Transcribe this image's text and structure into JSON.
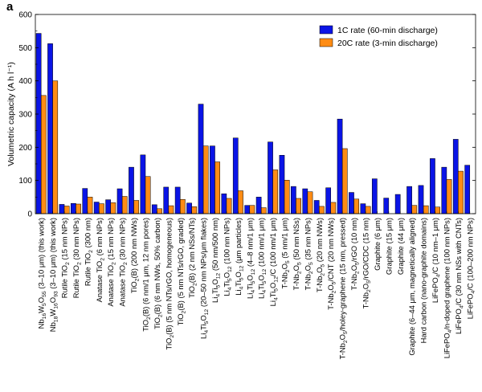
{
  "panel_label": "a",
  "chart_data": {
    "type": "bar",
    "ylabel": "Volumetric capacity (A h l⁻¹)",
    "xlabel": "",
    "ylim": [
      0,
      600
    ],
    "yticks": [
      0,
      100,
      200,
      300,
      400,
      500,
      600
    ],
    "grid": false,
    "legend_position": "top-right",
    "series": [
      {
        "name": "1C rate (60-min discharge)",
        "color": "#0a14e6",
        "values": [
          543,
          512,
          28,
          31,
          76,
          35,
          42,
          75,
          140,
          177,
          27,
          80,
          80,
          32,
          330,
          204,
          60,
          228,
          25,
          50,
          216,
          176,
          82,
          75,
          40,
          78,
          285,
          64,
          30,
          105,
          47,
          58,
          82,
          85,
          166,
          140,
          224,
          146
        ]
      },
      {
        "name": "20C rate (3-min discharge)",
        "color": "#ff8c14",
        "values": [
          356,
          400,
          23,
          29,
          50,
          30,
          33,
          52,
          40,
          112,
          15,
          24,
          43,
          21,
          204,
          156,
          46,
          69,
          25,
          18,
          132,
          101,
          46,
          66,
          22,
          34,
          196,
          44,
          22,
          0,
          0,
          0,
          25,
          24,
          20,
          103,
          128,
          0
        ]
      }
    ],
    "categories": [
      {
        "main": "Nb",
        "parts": [
          [
            "16",
            -1
          ],
          [
            "W",
            0
          ],
          [
            "5",
            -1
          ],
          [
            "O",
            0
          ],
          [
            "55",
            -1
          ],
          [
            " (3–10 μm) (this work)",
            0
          ]
        ]
      },
      {
        "main": "Nb",
        "parts": [
          [
            "18",
            -1
          ],
          [
            "W",
            0
          ],
          [
            "16",
            -1
          ],
          [
            "O",
            0
          ],
          [
            "93",
            -1
          ],
          [
            " (3–10 μm) (this work)",
            0
          ]
        ]
      },
      {
        "main": "Rutile TiO",
        "parts": [
          [
            "2",
            -1
          ],
          [
            " (15 nm NPs)",
            0
          ]
        ]
      },
      {
        "main": "Rutile TiO",
        "parts": [
          [
            "2",
            -1
          ],
          [
            " (30 nm NPs)",
            0
          ]
        ]
      },
      {
        "main": "Rutile TiO",
        "parts": [
          [
            "2",
            -1
          ],
          [
            " (300 nm)",
            0
          ]
        ]
      },
      {
        "main": "Anatase TiO",
        "parts": [
          [
            "2",
            -1
          ],
          [
            " (6 nm NPs)",
            0
          ]
        ]
      },
      {
        "main": "Anatase TiO",
        "parts": [
          [
            "2",
            -1
          ],
          [
            " (15 nm NPs)",
            0
          ]
        ]
      },
      {
        "main": "Anatase TiO",
        "parts": [
          [
            "2",
            -1
          ],
          [
            " (30 nm NPs)",
            0
          ]
        ]
      },
      {
        "main": "TiO",
        "parts": [
          [
            "2",
            -1
          ],
          [
            "(B) (200 nm NWs)",
            0
          ]
        ]
      },
      {
        "main": "TiO",
        "parts": [
          [
            "2",
            -1
          ],
          [
            "(B) (6 nm/1 μm, 12 nm pores)",
            0
          ]
        ]
      },
      {
        "main": "TiO",
        "parts": [
          [
            "2",
            -1
          ],
          [
            "(B) (6 nm NWs, 50% carbon)",
            0
          ]
        ]
      },
      {
        "main": "TiO",
        "parts": [
          [
            "2",
            -1
          ],
          [
            "(B) (5 nm NTs/rGO, homogeneous)",
            0
          ]
        ]
      },
      {
        "main": "TiO",
        "parts": [
          [
            "2",
            -1
          ],
          [
            "(B) (5 nm NTs/rGO, graded)",
            0
          ]
        ]
      },
      {
        "main": "TiO",
        "parts": [
          [
            "2",
            -1
          ],
          [
            "(B) (2 nm NSs/NTs)",
            0
          ]
        ]
      },
      {
        "main": "Li",
        "parts": [
          [
            "4",
            -1
          ],
          [
            "Ti",
            0
          ],
          [
            "5",
            -1
          ],
          [
            "O",
            0
          ],
          [
            "12",
            -1
          ],
          [
            " (20–50 nm NPs/μm flakes)",
            0
          ]
        ]
      },
      {
        "main": "Li",
        "parts": [
          [
            "4",
            -1
          ],
          [
            "Ti",
            0
          ],
          [
            "5",
            -1
          ],
          [
            "O",
            0
          ],
          [
            "12",
            -1
          ],
          [
            " (50 nm/500 nm)",
            0
          ]
        ]
      },
      {
        "main": "Li",
        "parts": [
          [
            "4",
            -1
          ],
          [
            "Ti",
            0
          ],
          [
            "5",
            -1
          ],
          [
            "O",
            0
          ],
          [
            "12",
            -1
          ],
          [
            " (100 nm NPs)",
            0
          ]
        ]
      },
      {
        "main": "Li",
        "parts": [
          [
            "4",
            -1
          ],
          [
            "Ti",
            0
          ],
          [
            "5",
            -1
          ],
          [
            "O",
            0
          ],
          [
            "12",
            -1
          ],
          [
            " (μm particles)",
            0
          ]
        ]
      },
      {
        "main": "Li",
        "parts": [
          [
            "4",
            -1
          ],
          [
            "Ti",
            0
          ],
          [
            "5",
            -1
          ],
          [
            "O",
            0
          ],
          [
            "12",
            -1
          ],
          [
            " (4–8 nm/1 μm)",
            0
          ]
        ]
      },
      {
        "main": "Li",
        "parts": [
          [
            "4",
            -1
          ],
          [
            "Ti",
            0
          ],
          [
            "5",
            -1
          ],
          [
            "O",
            0
          ],
          [
            "12",
            -1
          ],
          [
            " (100 nm/1 μm)",
            0
          ]
        ]
      },
      {
        "main": "Li",
        "parts": [
          [
            "4",
            -1
          ],
          [
            "Ti",
            0
          ],
          [
            "5",
            -1
          ],
          [
            "O",
            0
          ],
          [
            "12",
            -1
          ],
          [
            "/C (100 nm/1 μm)",
            0
          ]
        ]
      },
      {
        "main": "T-Nb",
        "parts": [
          [
            "2",
            -1
          ],
          [
            "O",
            0
          ],
          [
            "5",
            -1
          ],
          [
            " (5 nm/1 μm)",
            0
          ]
        ]
      },
      {
        "main": "T-Nb",
        "parts": [
          [
            "2",
            -1
          ],
          [
            "O",
            0
          ],
          [
            "5",
            -1
          ],
          [
            " (50 nm NSs)",
            0
          ]
        ]
      },
      {
        "main": "T-Nb",
        "parts": [
          [
            "2",
            -1
          ],
          [
            "O",
            0
          ],
          [
            "5",
            -1
          ],
          [
            " (35 nm NPs)",
            0
          ]
        ]
      },
      {
        "main": "T-Nb",
        "parts": [
          [
            "2",
            -1
          ],
          [
            "O",
            0
          ],
          [
            "5",
            -1
          ],
          [
            " (20 nm NWs)",
            0
          ]
        ]
      },
      {
        "main": "T-Nb",
        "parts": [
          [
            "2",
            -1
          ],
          [
            "O",
            0
          ],
          [
            "5",
            -1
          ],
          [
            "/CNT (20 nm NWs)",
            0
          ]
        ]
      },
      {
        "main": "T-Nb",
        "parts": [
          [
            "2",
            -1
          ],
          [
            "O",
            0
          ],
          [
            "5",
            -1
          ],
          [
            "/holey-graphene (15 nm, pressed)",
            0
          ]
        ]
      },
      {
        "main": "T-Nb",
        "parts": [
          [
            "2",
            -1
          ],
          [
            "O",
            0
          ],
          [
            "5",
            -1
          ],
          [
            "/rGO (10 nm)",
            0
          ]
        ]
      },
      {
        "main": "T-Nb",
        "parts": [
          [
            "2",
            -1
          ],
          [
            "O",
            0
          ],
          [
            "5",
            -1
          ],
          [
            "/rGO/CDC (15 nm)",
            0
          ]
        ]
      },
      {
        "main": "Graphite (6 μm)",
        "parts": []
      },
      {
        "main": "Graphite (15 μm)",
        "parts": []
      },
      {
        "main": "Graphite (44 μm)",
        "parts": []
      },
      {
        "main": "Graphite (6–44 μm, magnetically aligned)",
        "parts": []
      },
      {
        "main": "Hard carbon (nano-graphite domains)",
        "parts": []
      },
      {
        "main": "LiFePO",
        "parts": [
          [
            "4",
            -1
          ],
          [
            "/C (10 nm–1 μm)",
            0
          ]
        ]
      },
      {
        "main": "LiFePO",
        "parts": [
          [
            "4",
            -1
          ],
          [
            "/n-doped graphene (100 nm NPs)",
            0
          ]
        ]
      },
      {
        "main": "LiFePO",
        "parts": [
          [
            "4",
            -1
          ],
          [
            "/C (30 nm NSs with CNTs)",
            0
          ]
        ]
      },
      {
        "main": "LiFePO",
        "parts": [
          [
            "4",
            -1
          ],
          [
            "/C (100–200 nm NPs)",
            0
          ]
        ]
      }
    ]
  }
}
